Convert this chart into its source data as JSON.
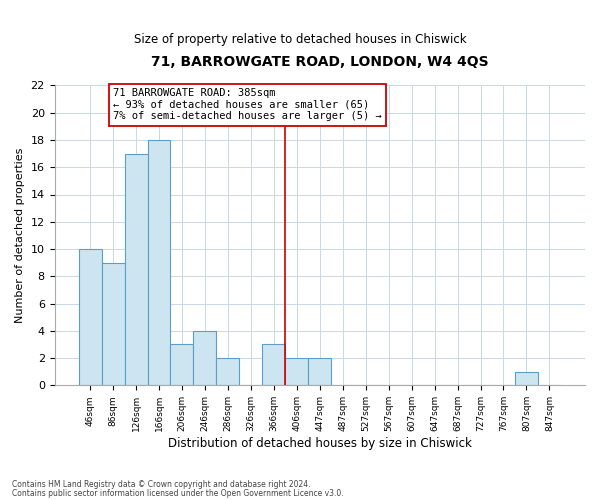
{
  "title": "71, BARROWGATE ROAD, LONDON, W4 4QS",
  "subtitle": "Size of property relative to detached houses in Chiswick",
  "xlabel": "Distribution of detached houses by size in Chiswick",
  "ylabel": "Number of detached properties",
  "footnote1": "Contains HM Land Registry data © Crown copyright and database right 2024.",
  "footnote2": "Contains public sector information licensed under the Open Government Licence v3.0.",
  "bin_labels": [
    "46sqm",
    "86sqm",
    "126sqm",
    "166sqm",
    "206sqm",
    "246sqm",
    "286sqm",
    "326sqm",
    "366sqm",
    "406sqm",
    "447sqm",
    "487sqm",
    "527sqm",
    "567sqm",
    "607sqm",
    "647sqm",
    "687sqm",
    "727sqm",
    "767sqm",
    "807sqm",
    "847sqm"
  ],
  "bar_values": [
    10,
    9,
    17,
    18,
    3,
    4,
    2,
    0,
    3,
    2,
    2,
    0,
    0,
    0,
    0,
    0,
    0,
    0,
    0,
    1,
    0
  ],
  "bar_color": "#cce5f0",
  "bar_edge_color": "#5b9fc8",
  "vline_x": 8.5,
  "vline_color": "#cc0000",
  "annotation_title": "71 BARROWGATE ROAD: 385sqm",
  "annotation_line2": "← 93% of detached houses are smaller (65)",
  "annotation_line3": "7% of semi-detached houses are larger (5) →",
  "ylim": [
    0,
    22
  ],
  "yticks": [
    0,
    2,
    4,
    6,
    8,
    10,
    12,
    14,
    16,
    18,
    20,
    22
  ],
  "n_bins": 21,
  "bg_color": "#ffffff",
  "grid_color": "#c8d8e8"
}
